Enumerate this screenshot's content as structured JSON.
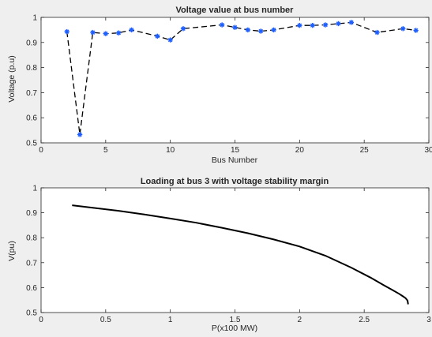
{
  "chart_data": [
    {
      "type": "line",
      "title": "Voltage value at bus number",
      "xlabel": "Bus Number",
      "ylabel": "Voltage (p.u)",
      "xlim": [
        0,
        30
      ],
      "ylim": [
        0.5,
        1
      ],
      "xticks": [
        "0",
        "5",
        "10",
        "15",
        "20",
        "25",
        "30"
      ],
      "yticks": [
        "0.5",
        "0.6",
        "0.7",
        "0.8",
        "0.9",
        "1"
      ],
      "grid": false,
      "line_style": "dashed",
      "line_color": "#000000",
      "marker": "asterisk",
      "marker_color": "#1f5fff",
      "series": [
        {
          "x": [
            2,
            3,
            4,
            5,
            6,
            7,
            9,
            10,
            11,
            14,
            15,
            16,
            17,
            18,
            20,
            21,
            22,
            23,
            24,
            26,
            28,
            29
          ],
          "y": [
            0.943,
            0.533,
            0.94,
            0.935,
            0.938,
            0.95,
            0.925,
            0.91,
            0.955,
            0.97,
            0.96,
            0.95,
            0.945,
            0.95,
            0.968,
            0.968,
            0.97,
            0.975,
            0.98,
            0.94,
            0.955,
            0.948
          ]
        }
      ]
    },
    {
      "type": "line",
      "title": "Loading at bus 3 with voltage stability margin",
      "xlabel": "P(x100 MW)",
      "ylabel": "V(pu)",
      "xlim": [
        0,
        3
      ],
      "ylim": [
        0.5,
        1
      ],
      "xticks": [
        "0",
        "0.5",
        "1",
        "1.5",
        "2",
        "2.5",
        "3"
      ],
      "yticks": [
        "0.5",
        "0.6",
        "0.7",
        "0.8",
        "0.9",
        "1"
      ],
      "grid": false,
      "line_style": "solid",
      "line_color": "#000000",
      "series": [
        {
          "x": [
            0.24,
            0.4,
            0.6,
            0.8,
            1.0,
            1.2,
            1.4,
            1.6,
            1.8,
            2.0,
            2.2,
            2.4,
            2.55,
            2.65,
            2.72,
            2.77,
            2.8,
            2.82,
            2.835,
            2.84
          ],
          "y": [
            0.93,
            0.92,
            0.908,
            0.893,
            0.877,
            0.86,
            0.84,
            0.818,
            0.793,
            0.765,
            0.728,
            0.68,
            0.64,
            0.61,
            0.59,
            0.575,
            0.565,
            0.558,
            0.548,
            0.533
          ]
        }
      ]
    }
  ]
}
